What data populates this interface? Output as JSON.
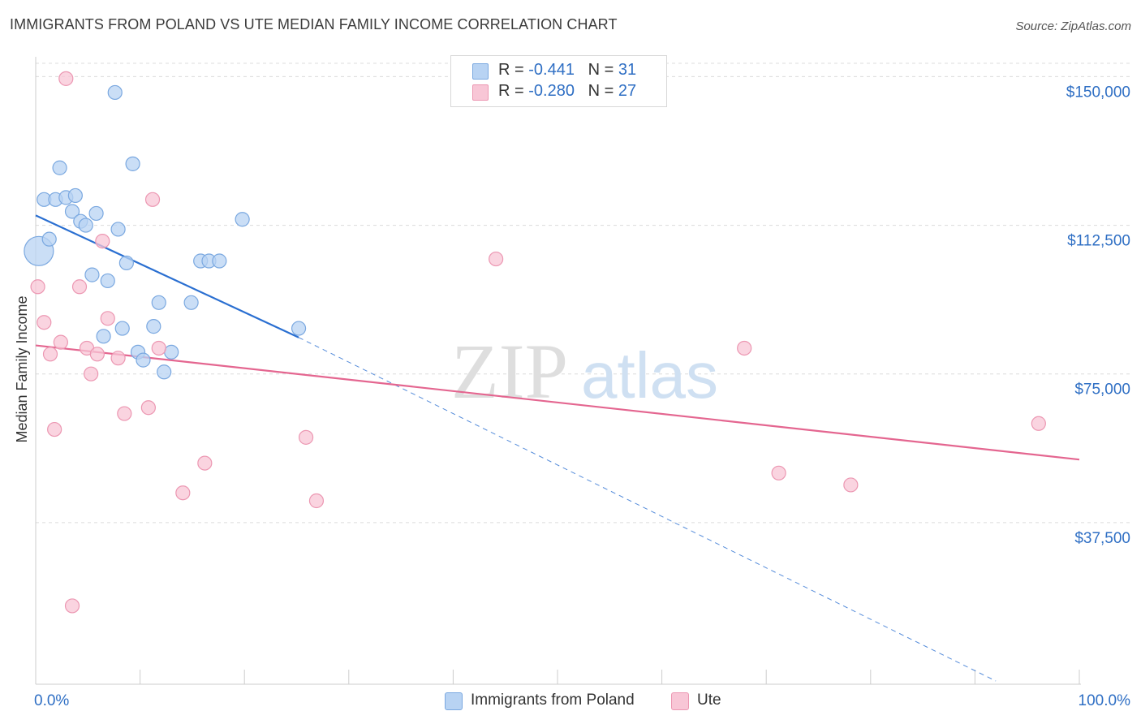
{
  "header": {
    "title": "IMMIGRANTS FROM POLAND VS UTE MEDIAN FAMILY INCOME CORRELATION CHART",
    "source": "Source: ZipAtlas.com"
  },
  "legend": {
    "r_label": "R =",
    "n_label": "N =",
    "rows": [
      {
        "r": "-0.441",
        "n": "31"
      },
      {
        "r": "-0.280",
        "n": "27"
      }
    ]
  },
  "watermark": {
    "zip": "ZIP",
    "atlas": "atlas"
  },
  "colors": {
    "blue_fill": "#b8d3f3",
    "blue_stroke": "#7aa8e0",
    "blue_line": "#2a6fd1",
    "pink_fill": "#f8c6d6",
    "pink_stroke": "#ec97b2",
    "pink_line": "#e46690",
    "axis_label": "#2f6fc4",
    "grid": "#dcdcdc"
  },
  "chart_data": {
    "type": "scatter",
    "title": "IMMIGRANTS FROM POLAND VS UTE MEDIAN FAMILY INCOME CORRELATION CHART",
    "xlabel": "",
    "ylabel": "Median Family Income",
    "xlim": [
      0,
      100
    ],
    "ylim": [
      0,
      155000
    ],
    "x_tick_labels": [
      "0.0%",
      "100.0%"
    ],
    "y_ticks": [
      {
        "value": 37500,
        "label": "$37,500"
      },
      {
        "value": 75000,
        "label": "$75,000"
      },
      {
        "value": 112500,
        "label": "$112,500"
      },
      {
        "value": 150000,
        "label": "$150,000"
      }
    ],
    "series": [
      {
        "name": "Immigrants from Poland",
        "color": "blue",
        "r": -0.441,
        "n": 31,
        "points": [
          {
            "x": 0.3,
            "y": 106000,
            "big": true
          },
          {
            "x": 0.8,
            "y": 119000
          },
          {
            "x": 1.3,
            "y": 109000
          },
          {
            "x": 1.9,
            "y": 119000
          },
          {
            "x": 2.3,
            "y": 127000
          },
          {
            "x": 2.9,
            "y": 119500
          },
          {
            "x": 3.5,
            "y": 116000
          },
          {
            "x": 3.8,
            "y": 120000
          },
          {
            "x": 4.3,
            "y": 113500
          },
          {
            "x": 4.8,
            "y": 112500
          },
          {
            "x": 5.4,
            "y": 100000
          },
          {
            "x": 5.8,
            "y": 115500
          },
          {
            "x": 6.5,
            "y": 84500
          },
          {
            "x": 6.9,
            "y": 98500
          },
          {
            "x": 7.6,
            "y": 146000
          },
          {
            "x": 7.9,
            "y": 111500
          },
          {
            "x": 8.3,
            "y": 86500
          },
          {
            "x": 8.7,
            "y": 103000
          },
          {
            "x": 9.3,
            "y": 128000
          },
          {
            "x": 9.8,
            "y": 80500
          },
          {
            "x": 10.3,
            "y": 78500
          },
          {
            "x": 11.3,
            "y": 87000
          },
          {
            "x": 11.8,
            "y": 93000
          },
          {
            "x": 12.3,
            "y": 75500
          },
          {
            "x": 13.0,
            "y": 80500
          },
          {
            "x": 14.9,
            "y": 93000
          },
          {
            "x": 15.8,
            "y": 103500
          },
          {
            "x": 16.6,
            "y": 103500
          },
          {
            "x": 17.6,
            "y": 103500
          },
          {
            "x": 19.8,
            "y": 114000
          },
          {
            "x": 25.2,
            "y": 86500
          }
        ],
        "trend": {
          "x0": 0,
          "y0": 115000,
          "x1": 25.2,
          "y1": 84200,
          "dash_to_x": 92,
          "dash_to_y": 0
        }
      },
      {
        "name": "Ute",
        "color": "pink",
        "r": -0.28,
        "n": 27,
        "points": [
          {
            "x": 0.2,
            "y": 97000
          },
          {
            "x": 0.8,
            "y": 88000
          },
          {
            "x": 1.4,
            "y": 80000
          },
          {
            "x": 1.8,
            "y": 61000
          },
          {
            "x": 2.4,
            "y": 83000
          },
          {
            "x": 2.9,
            "y": 149500
          },
          {
            "x": 3.5,
            "y": 16500
          },
          {
            "x": 4.2,
            "y": 97000
          },
          {
            "x": 4.9,
            "y": 81500
          },
          {
            "x": 5.3,
            "y": 75000
          },
          {
            "x": 5.9,
            "y": 80000
          },
          {
            "x": 6.4,
            "y": 108500
          },
          {
            "x": 6.9,
            "y": 89000
          },
          {
            "x": 7.9,
            "y": 79000
          },
          {
            "x": 8.5,
            "y": 65000
          },
          {
            "x": 10.8,
            "y": 66500
          },
          {
            "x": 11.2,
            "y": 119000
          },
          {
            "x": 11.8,
            "y": 81500
          },
          {
            "x": 14.1,
            "y": 45000
          },
          {
            "x": 16.2,
            "y": 52500
          },
          {
            "x": 25.9,
            "y": 59000
          },
          {
            "x": 26.9,
            "y": 43000
          },
          {
            "x": 44.1,
            "y": 104000
          },
          {
            "x": 67.9,
            "y": 81500
          },
          {
            "x": 71.2,
            "y": 50000
          },
          {
            "x": 78.1,
            "y": 47000
          },
          {
            "x": 96.1,
            "y": 62500
          }
        ],
        "trend": {
          "x0": 0,
          "y0": 82200,
          "x1": 100,
          "y1": 53400
        }
      }
    ]
  },
  "bottom_legend": {
    "items": [
      {
        "label": "Immigrants from Poland"
      },
      {
        "label": "Ute"
      }
    ]
  }
}
